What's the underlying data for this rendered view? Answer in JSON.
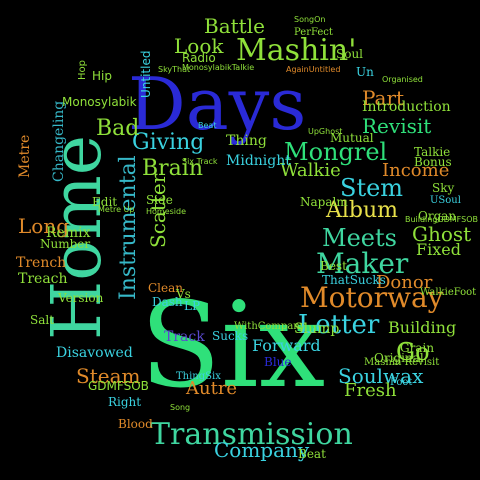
{
  "palette": {
    "background": "#000000",
    "blue": "#2a2ad6",
    "green": "#2fe07a",
    "lime": "#8fe03a",
    "teal": "#36b8c8",
    "cyan": "#3ad2e0",
    "orange": "#e08a2a",
    "yellow": "#e8e04a",
    "sea": "#3fd6a0",
    "violet": "#5a4ad0"
  },
  "words": [
    {
      "text": "Days",
      "color": "blue"
    },
    {
      "text": "Six",
      "color": "green"
    },
    {
      "text": "Home",
      "color": "sea"
    },
    {
      "text": "Mashin'",
      "color": "lime"
    },
    {
      "text": "Transmission",
      "color": "sea"
    },
    {
      "text": "Motorway",
      "color": "orange"
    },
    {
      "text": "Letter",
      "color": "cyan"
    },
    {
      "text": "Maker",
      "color": "sea"
    },
    {
      "text": "Meets",
      "color": "sea"
    },
    {
      "text": "Instrumental",
      "color": "teal"
    },
    {
      "text": "Mongrel",
      "color": "green"
    },
    {
      "text": "Stem",
      "color": "cyan"
    },
    {
      "text": "Album",
      "color": "yellow"
    },
    {
      "text": "Brain",
      "color": "lime"
    },
    {
      "text": "Giving",
      "color": "cyan"
    },
    {
      "text": "Battle",
      "color": "lime"
    },
    {
      "text": "Look",
      "color": "lime"
    },
    {
      "text": "Bad",
      "color": "lime"
    },
    {
      "text": "Part",
      "color": "orange"
    },
    {
      "text": "Revisit",
      "color": "green"
    },
    {
      "text": "Walkie",
      "color": "lime"
    },
    {
      "text": "Income",
      "color": "orange"
    },
    {
      "text": "Ghost",
      "color": "lime"
    },
    {
      "text": "Fixed",
      "color": "lime"
    },
    {
      "text": "Go",
      "color": "lime"
    },
    {
      "text": "Soulwax",
      "color": "cyan"
    },
    {
      "text": "Fresh",
      "color": "lime"
    },
    {
      "text": "Company",
      "color": "cyan"
    },
    {
      "text": "Steam",
      "color": "orange"
    },
    {
      "text": "Long",
      "color": "orange"
    },
    {
      "text": "Scatter",
      "color": "lime"
    },
    {
      "text": "Building",
      "color": "lime"
    },
    {
      "text": "Autre",
      "color": "orange"
    },
    {
      "text": "Changeling",
      "color": "teal"
    },
    {
      "text": "Monosylabik",
      "color": "lime"
    },
    {
      "text": "Disavowed",
      "color": "cyan"
    },
    {
      "text": "GDMFSOB",
      "color": "lime"
    },
    {
      "text": "Donor",
      "color": "orange"
    },
    {
      "text": "Trench",
      "color": "orange"
    },
    {
      "text": "Treach",
      "color": "lime"
    },
    {
      "text": "Forward",
      "color": "cyan"
    },
    {
      "text": "Slump",
      "color": "lime"
    },
    {
      "text": "Radio",
      "color": "lime"
    },
    {
      "text": "Hip",
      "color": "lime"
    },
    {
      "text": "Hop",
      "color": "lime"
    },
    {
      "text": "Untitled",
      "color": "cyan"
    },
    {
      "text": "Midnight",
      "color": "cyan"
    },
    {
      "text": "Thing",
      "color": "lime"
    },
    {
      "text": "Side",
      "color": "lime"
    },
    {
      "text": "Edit",
      "color": "lime"
    },
    {
      "text": "Metre",
      "color": "orange"
    },
    {
      "text": "Remix",
      "color": "lime"
    },
    {
      "text": "Number",
      "color": "lime"
    },
    {
      "text": "Version",
      "color": "lime"
    },
    {
      "text": "Salt",
      "color": "lime"
    },
    {
      "text": "Dash",
      "color": "cyan"
    },
    {
      "text": "Clean",
      "color": "orange"
    },
    {
      "text": "Vs",
      "color": "lime"
    },
    {
      "text": "LP",
      "color": "cyan"
    },
    {
      "text": "Track",
      "color": "violet"
    },
    {
      "text": "Sucks",
      "color": "cyan"
    },
    {
      "text": "Best",
      "color": "lime"
    },
    {
      "text": "Blue",
      "color": "blue"
    },
    {
      "text": "Grain",
      "color": "lime"
    },
    {
      "text": "Original",
      "color": "lime"
    },
    {
      "text": "Right",
      "color": "cyan"
    },
    {
      "text": "Blood",
      "color": "orange"
    },
    {
      "text": "Beat",
      "color": "lime"
    },
    {
      "text": "Soul",
      "color": "lime"
    },
    {
      "text": "Un",
      "color": "cyan"
    },
    {
      "text": "Introduction",
      "color": "lime"
    },
    {
      "text": "Mutual",
      "color": "lime"
    },
    {
      "text": "Talkie",
      "color": "lime"
    },
    {
      "text": "Bonus",
      "color": "lime"
    },
    {
      "text": "Sky",
      "color": "lime"
    },
    {
      "text": "Organ",
      "color": "lime"
    },
    {
      "text": "Napalm",
      "color": "lime"
    },
    {
      "text": "PerFect",
      "color": "lime"
    },
    {
      "text": "SongOn",
      "color": "lime"
    },
    {
      "text": "SkyThat",
      "color": "lime"
    },
    {
      "text": "MonosylabikTalkie",
      "color": "lime"
    },
    {
      "text": "AgainUntitled",
      "color": "orange"
    },
    {
      "text": "ThingSix",
      "color": "cyan"
    },
    {
      "text": "WithCompany",
      "color": "lime"
    },
    {
      "text": "ThatSucks",
      "color": "cyan"
    },
    {
      "text": "WalkieFoot",
      "color": "lime"
    },
    {
      "text": "Organised",
      "color": "lime"
    },
    {
      "text": "Foot",
      "color": "cyan"
    },
    {
      "text": "Mashin Revisit",
      "color": "lime"
    },
    {
      "text": "USoul",
      "color": "cyan"
    },
    {
      "text": "BuildingGDMFSOB",
      "color": "lime"
    },
    {
      "text": "Six Track",
      "color": "lime"
    },
    {
      "text": "Homeside",
      "color": "lime"
    },
    {
      "text": "Beat",
      "color": "cyan"
    },
    {
      "text": "UpGhost",
      "color": "lime"
    },
    {
      "text": "Song",
      "color": "lime"
    },
    {
      "text": "Metre Up",
      "color": "lime"
    }
  ]
}
